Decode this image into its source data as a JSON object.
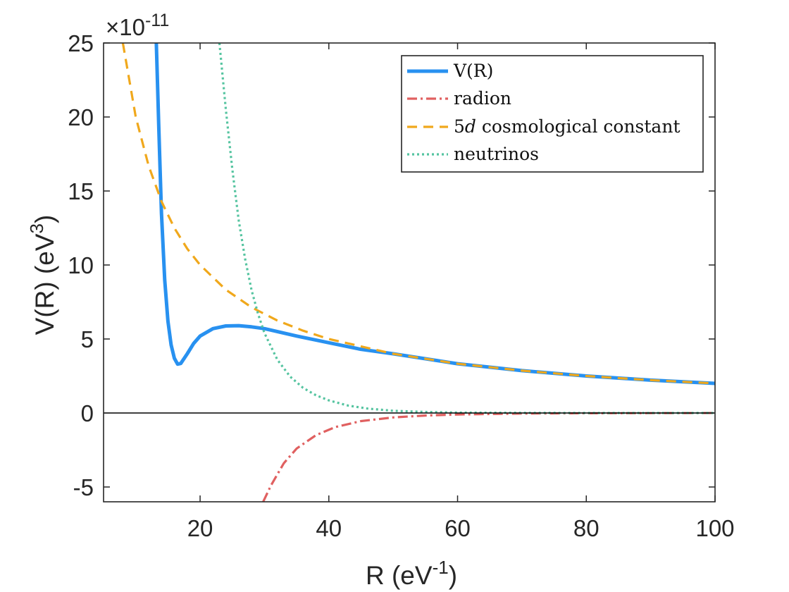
{
  "chart_data": {
    "type": "line",
    "xlabel": {
      "base": "R (eV",
      "sup": "-1",
      "end": ")"
    },
    "ylabel": {
      "base": "V(R) (eV",
      "sup": "3",
      "end": ")"
    },
    "xlim": [
      5,
      100
    ],
    "ylim": [
      -6,
      25
    ],
    "y_multiplier": {
      "symbol": "×10",
      "exponent": "-11"
    },
    "xticks": [
      20,
      40,
      60,
      80,
      100
    ],
    "xtick_labels": [
      "20",
      "40",
      "60",
      "80",
      "100"
    ],
    "yticks": [
      -5,
      0,
      5,
      10,
      15,
      20,
      25
    ],
    "ytick_labels": [
      "-5",
      "0",
      "5",
      "10",
      "15",
      "20",
      "25"
    ],
    "grid": false,
    "legend_position": "top-right",
    "series": [
      {
        "name": "V(R)",
        "legend_label": "V(R)",
        "color": "#2891f0",
        "style": "solid",
        "x": [
          13.2,
          13.6,
          14.0,
          14.5,
          15.0,
          15.5,
          16.0,
          16.5,
          17.0,
          18.0,
          19.0,
          20.0,
          22.0,
          24.0,
          26.0,
          28.0,
          30.0,
          35.0,
          40.0,
          45.0,
          50.0,
          60.0,
          70.0,
          80.0,
          90.0,
          100.0
        ],
        "y": [
          25.0,
          19.0,
          13.5,
          9.0,
          6.2,
          4.6,
          3.7,
          3.3,
          3.35,
          4.0,
          4.7,
          5.2,
          5.7,
          5.88,
          5.9,
          5.82,
          5.7,
          5.2,
          4.75,
          4.3,
          4.0,
          3.33,
          2.86,
          2.5,
          2.22,
          2.0
        ]
      },
      {
        "name": "radion",
        "legend_label": "radion",
        "color": "#e06060",
        "style": "dashdot",
        "x": [
          29.8,
          31.0,
          33.0,
          35.0,
          38.0,
          41.0,
          45.0,
          50.0,
          55.0,
          60.0,
          70.0,
          80.0,
          90.0,
          100.0
        ],
        "y": [
          -6.0,
          -4.9,
          -3.4,
          -2.4,
          -1.5,
          -0.95,
          -0.55,
          -0.3,
          -0.17,
          -0.1,
          -0.04,
          -0.02,
          -0.01,
          0.0
        ]
      },
      {
        "name": "5d cosmological constant",
        "legend_label_num": "5",
        "legend_label_var": "d",
        "legend_label_rest": " cosmological constant",
        "color": "#f0a81c",
        "style": "dashed",
        "x": [
          8.0,
          10.0,
          12.0,
          14.0,
          16.0,
          18.0,
          20.0,
          24.0,
          28.0,
          32.0,
          36.0,
          40.0,
          50.0,
          60.0,
          70.0,
          80.0,
          90.0,
          100.0
        ],
        "y": [
          25.0,
          20.0,
          16.7,
          14.3,
          12.5,
          11.1,
          10.0,
          8.33,
          7.14,
          6.25,
          5.56,
          5.0,
          4.0,
          3.33,
          2.86,
          2.5,
          2.22,
          2.0
        ]
      },
      {
        "name": "neutrinos",
        "legend_label": "neutrinos",
        "color": "#55c4a0",
        "style": "dotted",
        "x": [
          23.0,
          24.0,
          25.0,
          26.0,
          27.0,
          28.0,
          29.0,
          30.0,
          32.0,
          34.0,
          36.0,
          38.0,
          40.0,
          43.0,
          46.0,
          50.0,
          55.0,
          60.0,
          70.0,
          80.0,
          90.0,
          100.0
        ],
        "y": [
          25.0,
          20.5,
          16.5,
          13.0,
          10.4,
          8.3,
          6.7,
          5.4,
          3.6,
          2.45,
          1.7,
          1.2,
          0.85,
          0.5,
          0.3,
          0.15,
          0.07,
          0.03,
          0.01,
          0.0,
          0.0,
          0.0
        ]
      }
    ]
  }
}
